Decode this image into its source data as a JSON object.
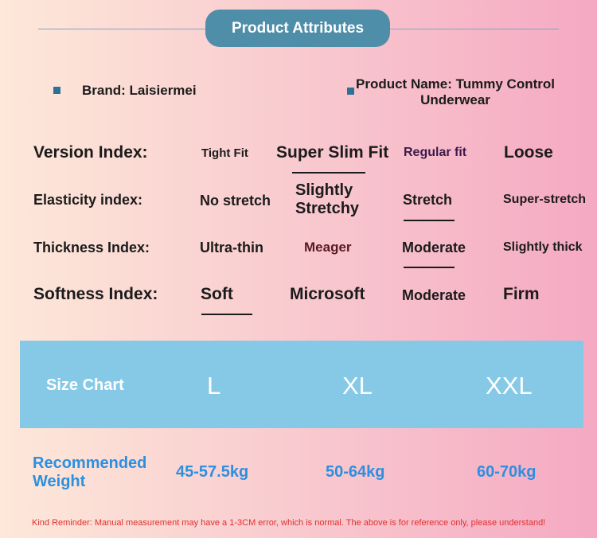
{
  "header": {
    "title": "Product Attributes"
  },
  "attributes": {
    "brand": "Brand: Laisiermei",
    "product_name_line1": "Product Name: Tummy Control",
    "product_name_line2": "Underwear"
  },
  "indices": [
    {
      "label": "Version Index:",
      "options": [
        "Tight Fit",
        "Super Slim Fit",
        "Regular fit",
        "Loose"
      ],
      "selected": "Super Slim Fit"
    },
    {
      "label": "Elasticity index:",
      "options": [
        "No stretch",
        "Slightly Stretchy",
        "Stretch",
        "Super-stretch"
      ],
      "selected": "Stretch"
    },
    {
      "label": "Thickness Index:",
      "options": [
        "Ultra-thin",
        "Meager",
        "Moderate",
        "Slightly thick"
      ],
      "selected": "Moderate"
    },
    {
      "label": "Softness Index:",
      "options": [
        "Soft",
        "Microsoft",
        "Moderate",
        "Firm"
      ],
      "selected": "Soft"
    }
  ],
  "size_chart": {
    "title": "Size Chart",
    "sizes": [
      "L",
      "XL",
      "XXL"
    ],
    "recommended_label_line1": "Recommended",
    "recommended_label_line2": "Weight",
    "weights": [
      "45-57.5kg",
      "50-64kg",
      "60-70kg"
    ]
  },
  "reminder": "Kind Reminder: Manual measurement may have a 1-3CM error, which is normal. The above is for reference only, please understand!",
  "colors": {
    "pill": "#4e8ea8",
    "bullet": "#2d7196",
    "size_bar": "#86c9e7",
    "recommended": "#2c8fe0",
    "reminder": "#e0302f"
  }
}
